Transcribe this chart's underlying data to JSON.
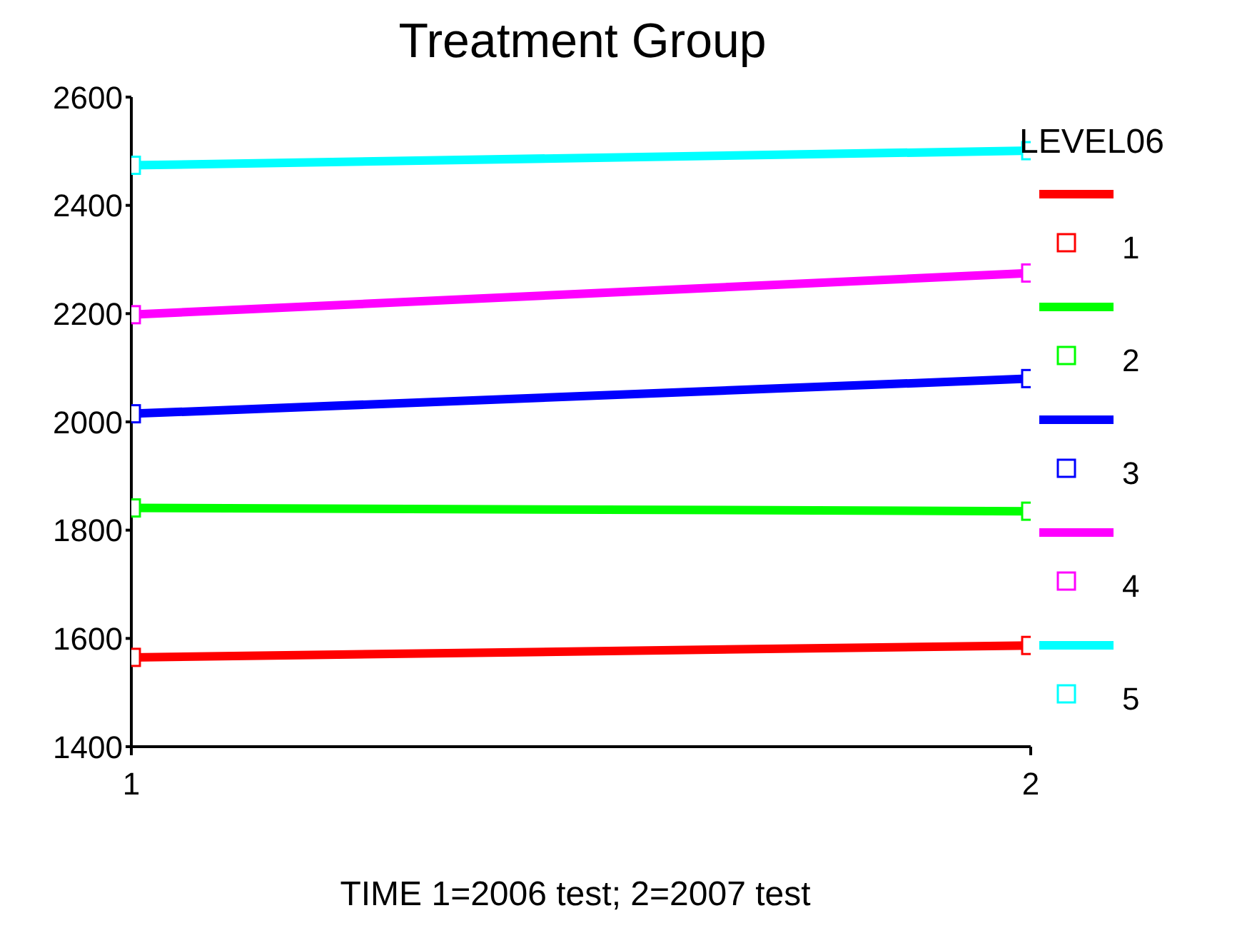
{
  "chart_data": {
    "type": "line",
    "title": "Treatment Group",
    "xlabel": "TIME 1=2006 test; 2=2007 test",
    "legend_title": "LEVEL06",
    "x": [
      1,
      2
    ],
    "xlim": [
      1,
      2
    ],
    "xticks": [
      1,
      2
    ],
    "ylim": [
      1400,
      2600
    ],
    "yticks": [
      1400,
      1600,
      1800,
      2000,
      2200,
      2400,
      2600
    ],
    "grid": false,
    "legend": "right",
    "marker": "square",
    "line_style": "solid",
    "series": [
      {
        "name": "1",
        "color": "#ff0000",
        "values": [
          1565,
          1587
        ]
      },
      {
        "name": "2",
        "color": "#00ff00",
        "values": [
          1841,
          1835
        ]
      },
      {
        "name": "3",
        "color": "#0000ff",
        "values": [
          2015,
          2080
        ]
      },
      {
        "name": "4",
        "color": "#ff00ff",
        "values": [
          2198,
          2275
        ]
      },
      {
        "name": "5",
        "color": "#00ffff",
        "values": [
          2474,
          2501
        ]
      }
    ]
  }
}
